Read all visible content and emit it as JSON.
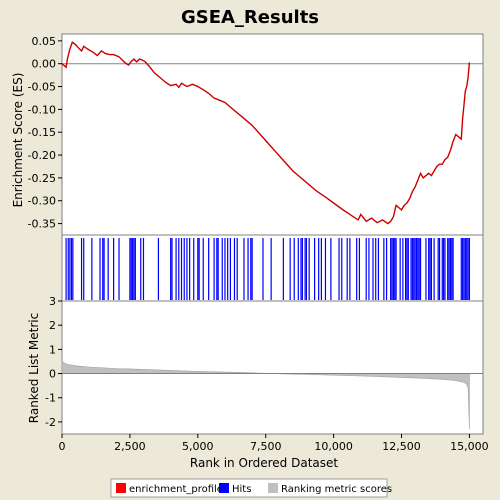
{
  "chart_data": [
    {
      "panel": "enrichment",
      "type": "line",
      "title": "GSEA_Results",
      "ylabel": "Enrichment Score (ES)",
      "ylim": [
        -0.375,
        0.065
      ],
      "yticks": [
        0.05,
        0.0,
        -0.05,
        -0.1,
        -0.15,
        -0.2,
        -0.25,
        -0.3,
        -0.35
      ],
      "ytick_labels": [
        "0.05",
        "0.00",
        "-0.05",
        "-0.10",
        "-0.15",
        "-0.20",
        "-0.25",
        "-0.30",
        "-0.35"
      ],
      "line_color": "#cc0000",
      "x": [
        0,
        150,
        200,
        280,
        380,
        500,
        600,
        720,
        800,
        900,
        1000,
        1150,
        1300,
        1450,
        1600,
        1750,
        1900,
        2100,
        2300,
        2450,
        2550,
        2650,
        2750,
        2850,
        2950,
        3050,
        3200,
        3400,
        3600,
        3800,
        4000,
        4200,
        4300,
        4400,
        4600,
        4800,
        5000,
        5200,
        5400,
        5600,
        5800,
        6000,
        6200,
        6400,
        6600,
        6800,
        7000,
        7300,
        7600,
        7900,
        8200,
        8500,
        8800,
        9100,
        9400,
        9700,
        10000,
        10300,
        10600,
        10900,
        11000,
        11200,
        11400,
        11600,
        11800,
        12000,
        12100,
        12200,
        12300,
        12400,
        12500,
        12600,
        12700,
        12800,
        12900,
        13000,
        13100,
        13200,
        13300,
        13400,
        13500,
        13600,
        13700,
        13800,
        13900,
        14000,
        14100,
        14200,
        14300,
        14400,
        14500,
        14600,
        14700,
        14750,
        14800,
        14850,
        14900,
        14950,
        15000
      ],
      "y": [
        0.0,
        -0.008,
        0.01,
        0.03,
        0.047,
        0.042,
        0.035,
        0.028,
        0.038,
        0.034,
        0.03,
        0.025,
        0.018,
        0.028,
        0.022,
        0.02,
        0.02,
        0.015,
        0.003,
        -0.003,
        0.005,
        0.01,
        0.004,
        0.01,
        0.008,
        0.005,
        -0.005,
        -0.02,
        -0.03,
        -0.04,
        -0.048,
        -0.045,
        -0.052,
        -0.043,
        -0.05,
        -0.045,
        -0.05,
        -0.057,
        -0.065,
        -0.075,
        -0.08,
        -0.085,
        -0.095,
        -0.105,
        -0.115,
        -0.125,
        -0.135,
        -0.155,
        -0.175,
        -0.195,
        -0.215,
        -0.235,
        -0.25,
        -0.265,
        -0.28,
        -0.292,
        -0.305,
        -0.318,
        -0.33,
        -0.342,
        -0.33,
        -0.345,
        -0.338,
        -0.348,
        -0.342,
        -0.35,
        -0.345,
        -0.335,
        -0.31,
        -0.315,
        -0.32,
        -0.31,
        -0.305,
        -0.295,
        -0.28,
        -0.27,
        -0.255,
        -0.24,
        -0.25,
        -0.245,
        -0.24,
        -0.245,
        -0.235,
        -0.225,
        -0.22,
        -0.22,
        -0.21,
        -0.205,
        -0.19,
        -0.17,
        -0.155,
        -0.16,
        -0.165,
        -0.12,
        -0.09,
        -0.06,
        -0.05,
        -0.03,
        0.003
      ]
    },
    {
      "panel": "hits",
      "type": "scatter",
      "color": "#0000ff",
      "hits": [
        150,
        230,
        290,
        350,
        400,
        720,
        800,
        1100,
        1400,
        1500,
        1550,
        1700,
        1900,
        2100,
        2500,
        2550,
        2600,
        2650,
        2700,
        2900,
        3000,
        3550,
        4000,
        4050,
        4200,
        4300,
        4400,
        4500,
        4600,
        4700,
        4850,
        5000,
        5050,
        5200,
        5400,
        5600,
        5700,
        5750,
        5900,
        6000,
        6100,
        6200,
        6350,
        6450,
        6700,
        6850,
        6950,
        7000,
        7400,
        7700,
        8150,
        8400,
        8550,
        8700,
        8800,
        8850,
        8950,
        9000,
        9100,
        9300,
        9450,
        9550,
        9700,
        9900,
        10200,
        10300,
        10500,
        10600,
        10850,
        10950,
        11200,
        11300,
        11450,
        11550,
        11650,
        11850,
        11950,
        12100,
        12150,
        12200,
        12250,
        12300,
        12450,
        12550,
        12650,
        12700,
        12750,
        12850,
        12900,
        12950,
        13000,
        13050,
        13100,
        13150,
        13200,
        13400,
        13500,
        13550,
        13600,
        13700,
        13850,
        13900,
        14000,
        14050,
        14100,
        14200,
        14250,
        14300,
        14350,
        14400,
        14700,
        14750,
        14800,
        14850,
        14900,
        14950,
        15000
      ]
    },
    {
      "panel": "ranked_metric",
      "type": "area",
      "ylabel": "Ranked List Metric",
      "xlabel": "Rank in Ordered Dataset",
      "ylim": [
        -2.5,
        3.0
      ],
      "yticks": [
        3,
        2,
        1,
        0,
        -1,
        -2
      ],
      "ytick_labels": [
        "3",
        "2",
        "1",
        "0",
        "-1",
        "-2"
      ],
      "xlim": [
        0,
        15500
      ],
      "xticks": [
        0,
        2500,
        5000,
        7500,
        10000,
        12500,
        15000
      ],
      "xtick_labels": [
        "0",
        "2,500",
        "5,000",
        "7,500",
        "10,000",
        "12,500",
        "15,000"
      ],
      "fill_color": "#c0c0c0",
      "x": [
        0,
        50,
        200,
        500,
        1000,
        2000,
        3000,
        4000,
        5000,
        6000,
        7000,
        7500,
        8000,
        9000,
        10000,
        11000,
        12000,
        13000,
        14000,
        14500,
        14800,
        14900,
        14950,
        15000
      ],
      "y": [
        0.55,
        0.45,
        0.38,
        0.32,
        0.27,
        0.21,
        0.17,
        0.13,
        0.09,
        0.06,
        0.03,
        0.01,
        -0.01,
        -0.04,
        -0.07,
        -0.1,
        -0.14,
        -0.18,
        -0.24,
        -0.29,
        -0.36,
        -0.45,
        -0.6,
        -2.3
      ]
    }
  ],
  "legend": {
    "items": [
      {
        "label": "enrichment_profile",
        "color": "#ff0000"
      },
      {
        "label": "Hits",
        "color": "#0000ff"
      },
      {
        "label": "Ranking metric scores",
        "color": "#c0c0c0"
      }
    ]
  }
}
